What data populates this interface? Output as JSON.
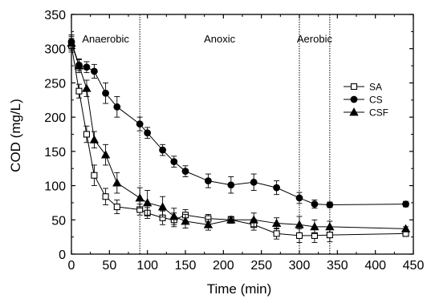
{
  "chart_data": {
    "type": "line",
    "xlabel": "Time (min)",
    "ylabel": "COD (mg/L)",
    "xlim": [
      0,
      450
    ],
    "ylim": [
      0,
      350
    ],
    "x_ticks": [
      "0",
      "50",
      "100",
      "150",
      "200",
      "250",
      "300",
      "350",
      "400",
      "450"
    ],
    "y_ticks": [
      "0",
      "50",
      "100",
      "150",
      "200",
      "250",
      "300",
      "350"
    ],
    "grid": false,
    "legend_position": "right",
    "phase_boundaries": [
      90,
      300,
      340
    ],
    "phase_labels": [
      {
        "text": "Anaerobic",
        "x": 45
      },
      {
        "text": "Anoxic",
        "x": 195
      },
      {
        "text": "Aerobic",
        "x": 320
      }
    ],
    "series": [
      {
        "name": "SA",
        "marker": "open-square",
        "color": "#000000",
        "x": [
          0,
          10,
          20,
          30,
          45,
          60,
          90,
          100,
          120,
          135,
          150,
          180,
          210,
          240,
          270,
          300,
          320,
          340,
          440
        ],
        "y": [
          305,
          238,
          175,
          115,
          84,
          69,
          65,
          60,
          53,
          50,
          57,
          52,
          50,
          43,
          30,
          27,
          27,
          28,
          30
        ],
        "err": [
          10,
          10,
          12,
          15,
          12,
          10,
          8,
          8,
          10,
          10,
          8,
          6,
          5,
          8,
          8,
          10,
          10,
          10,
          4
        ]
      },
      {
        "name": "CS",
        "marker": "filled-circle",
        "color": "#000000",
        "x": [
          0,
          10,
          20,
          30,
          45,
          60,
          90,
          100,
          120,
          135,
          150,
          180,
          210,
          240,
          270,
          300,
          320,
          340,
          440
        ],
        "y": [
          310,
          276,
          273,
          267,
          235,
          215,
          190,
          177,
          152,
          135,
          121,
          107,
          101,
          105,
          97,
          82,
          73,
          72,
          73
        ],
        "err": [
          10,
          8,
          8,
          10,
          15,
          15,
          10,
          8,
          8,
          8,
          8,
          10,
          12,
          12,
          10,
          8,
          6,
          4,
          4
        ]
      },
      {
        "name": "CSF",
        "marker": "filled-triangle",
        "color": "#000000",
        "x": [
          0,
          10,
          20,
          30,
          45,
          60,
          90,
          100,
          120,
          135,
          150,
          180,
          210,
          240,
          270,
          300,
          320,
          340,
          440
        ],
        "y": [
          308,
          275,
          242,
          167,
          145,
          104,
          82,
          75,
          69,
          55,
          48,
          43,
          50,
          50,
          45,
          43,
          40,
          40,
          37
        ],
        "err": [
          10,
          10,
          12,
          12,
          15,
          15,
          15,
          18,
          15,
          12,
          10,
          8,
          5,
          10,
          8,
          12,
          10,
          8,
          3
        ]
      }
    ]
  }
}
